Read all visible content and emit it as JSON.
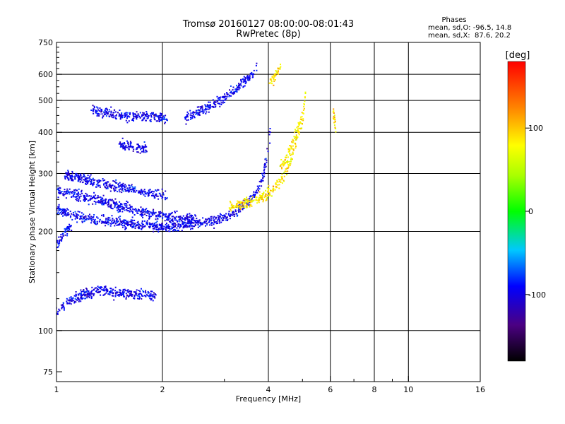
{
  "chart_data": {
    "type": "scatter",
    "title": "Tromsø 20160127 08:00:00-08:01:43",
    "subtitle": "RwPretec (8p)",
    "xlabel": "Frequency [MHz]",
    "ylabel": "Stationary phase Virtual Height [km]",
    "x_scale": "log",
    "y_scale": "log",
    "xlim": [
      1,
      16
    ],
    "ylim": [
      70,
      750
    ],
    "x_ticks": [
      1,
      2,
      4,
      6,
      8,
      10,
      16
    ],
    "x_tick_labels": [
      "1",
      "2",
      "4",
      "6",
      "8",
      "10",
      "16"
    ],
    "x_grid": [
      1,
      2,
      4,
      6,
      8,
      10
    ],
    "x_minor_ticks": [
      3,
      5,
      7,
      9
    ],
    "y_ticks": [
      75,
      100,
      200,
      300,
      400,
      500,
      600,
      750
    ],
    "y_tick_labels": [
      "75",
      "100",
      "200",
      "300",
      "400",
      "500",
      "600",
      "750"
    ],
    "y_grid": [
      100,
      200,
      300,
      400,
      500,
      600
    ],
    "y_minor_ticks": [
      125,
      150,
      175,
      225,
      250,
      275,
      325,
      350,
      375,
      425,
      450,
      475,
      525,
      550,
      575,
      625,
      650,
      675,
      700,
      725
    ],
    "grid": true,
    "legend": "none",
    "info": {
      "heading": "Phases",
      "line_o": "mean, sd,O: -96.5, 14.8",
      "line_x": "mean, sd,X:  87.6, 20.2"
    },
    "colorbar": {
      "label": "[deg]",
      "range": [
        -180,
        180
      ],
      "ticks": [
        100,
        0,
        -100
      ],
      "tick_labels": [
        "100",
        "0",
        "-100"
      ],
      "placement": "right"
    },
    "series": [
      {
        "mode": "O",
        "phase_mean": -96.5,
        "phase_sd": 14.8,
        "traces": [
          {
            "x": [
              1.0,
              1.05,
              1.1,
              1.2,
              1.3,
              1.45,
              1.6,
              1.8,
              2.0,
              2.2,
              2.5,
              2.8,
              3.1,
              3.3,
              3.5,
              3.7,
              3.85,
              3.95,
              4.05
            ],
            "y": [
              235,
              230,
              225,
              222,
              218,
              215,
              212,
              210,
              208,
              208,
              212,
              217,
              225,
              235,
              248,
              268,
              295,
              340,
              420
            ]
          },
          {
            "x": [
              1.0,
              1.1,
              1.2,
              1.35,
              1.5,
              1.7,
              1.9,
              2.1,
              2.3,
              2.5
            ],
            "y": [
              268,
              262,
              255,
              248,
              240,
              232,
              226,
              222,
              220,
              218
            ]
          },
          {
            "x": [
              1.05,
              1.15,
              1.25,
              1.4,
              1.6,
              1.85,
              2.05
            ],
            "y": [
              300,
              292,
              285,
              278,
              270,
              262,
              258
            ]
          },
          {
            "x": [
              1.25,
              1.35,
              1.5,
              1.7,
              1.9,
              2.05
            ],
            "y": [
              470,
              460,
              455,
              452,
              448,
              445
            ]
          },
          {
            "x": [
              2.3,
              2.6,
              2.9,
              3.2,
              3.45,
              3.7
            ],
            "y": [
              440,
              470,
              500,
              540,
              580,
              630
            ]
          },
          {
            "x": [
              1.5,
              1.6,
              1.7,
              1.8
            ],
            "y": [
              370,
              365,
              360,
              358
            ]
          },
          {
            "x": [
              1.0,
              1.05,
              1.1,
              1.2,
              1.35,
              1.5,
              1.7,
              1.9
            ],
            "y": [
              115,
              120,
              125,
              130,
              133,
              130,
              130,
              128
            ]
          },
          {
            "x": [
              1.0,
              1.02,
              1.05,
              1.1
            ],
            "y": [
              180,
              190,
              200,
              210
            ]
          }
        ]
      },
      {
        "mode": "X",
        "phase_mean": 87.6,
        "phase_sd": 20.2,
        "traces": [
          {
            "x": [
              3.1,
              3.4,
              3.7,
              4.0,
              4.2,
              4.4,
              4.55,
              4.7,
              4.85,
              5.0
            ],
            "y": [
              238,
              245,
              252,
              262,
              275,
              295,
              320,
              355,
              400,
              440
            ]
          },
          {
            "x": [
              4.3,
              4.5,
              4.7,
              4.85,
              5.0,
              5.1
            ],
            "y": [
              310,
              340,
              380,
              420,
              470,
              520
            ]
          },
          {
            "x": [
              4.0,
              4.15,
              4.3
            ],
            "y": [
              560,
              600,
              630
            ]
          },
          {
            "x": [
              6.1,
              6.15,
              6.2
            ],
            "y": [
              470,
              430,
              400
            ]
          }
        ]
      }
    ]
  }
}
